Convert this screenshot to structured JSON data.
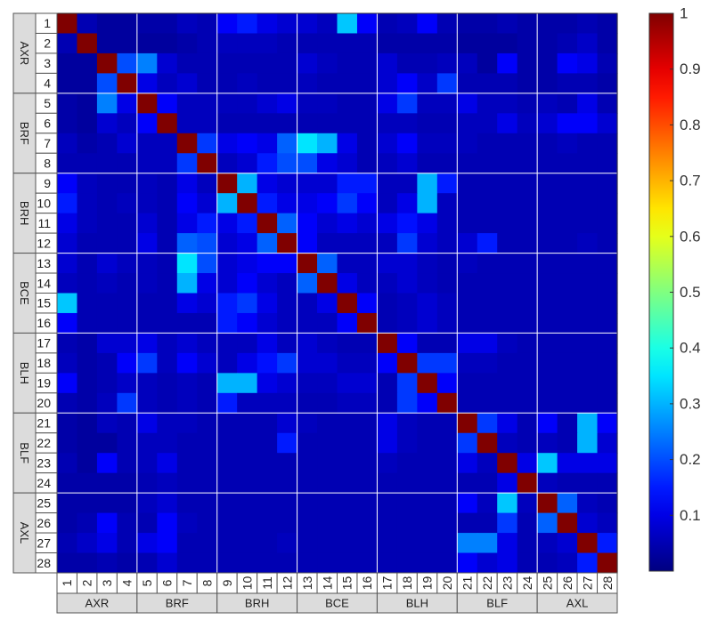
{
  "chart_data": {
    "type": "heatmap",
    "title": "",
    "xlabel": "",
    "ylabel": "",
    "labels": [
      "1",
      "2",
      "3",
      "4",
      "5",
      "6",
      "7",
      "8",
      "9",
      "10",
      "11",
      "12",
      "13",
      "14",
      "15",
      "16",
      "17",
      "18",
      "19",
      "20",
      "21",
      "22",
      "23",
      "24",
      "25",
      "26",
      "27",
      "28"
    ],
    "groups": [
      {
        "name": "AXR",
        "count": 4
      },
      {
        "name": "BRF",
        "count": 4
      },
      {
        "name": "BRH",
        "count": 4
      },
      {
        "name": "BCE",
        "count": 4
      },
      {
        "name": "BLH",
        "count": 4
      },
      {
        "name": "BLF",
        "count": 4
      },
      {
        "name": "AXL",
        "count": 4
      }
    ],
    "colormap": "jet",
    "clim": [
      0,
      1
    ],
    "colorbar_ticks": [
      {
        "value": 1.0,
        "label": "1"
      },
      {
        "value": 0.9,
        "label": "0.9"
      },
      {
        "value": 0.8,
        "label": "0.8"
      },
      {
        "value": 0.7,
        "label": "0.7"
      },
      {
        "value": 0.6,
        "label": "0.6"
      },
      {
        "value": 0.5,
        "label": "0.5"
      },
      {
        "value": 0.4,
        "label": "0.4"
      },
      {
        "value": 0.3,
        "label": "0.3"
      },
      {
        "value": 0.2,
        "label": "0.2"
      },
      {
        "value": 0.1,
        "label": "0.1"
      }
    ],
    "grid_line_color": "#ffffff",
    "values": [
      [
        1.0,
        0.05,
        0.03,
        0.03,
        0.04,
        0.04,
        0.06,
        0.05,
        0.12,
        0.15,
        0.1,
        0.08,
        0.08,
        0.06,
        0.32,
        0.12,
        0.05,
        0.06,
        0.12,
        0.05,
        0.04,
        0.04,
        0.05,
        0.04,
        0.04,
        0.04,
        0.05,
        0.04
      ],
      [
        0.05,
        1.0,
        0.03,
        0.03,
        0.03,
        0.03,
        0.04,
        0.05,
        0.06,
        0.06,
        0.06,
        0.05,
        0.05,
        0.05,
        0.05,
        0.05,
        0.04,
        0.04,
        0.04,
        0.04,
        0.03,
        0.03,
        0.03,
        0.04,
        0.04,
        0.05,
        0.07,
        0.04
      ],
      [
        0.03,
        0.03,
        1.0,
        0.2,
        0.25,
        0.08,
        0.05,
        0.05,
        0.05,
        0.05,
        0.05,
        0.05,
        0.08,
        0.06,
        0.05,
        0.05,
        0.08,
        0.05,
        0.05,
        0.06,
        0.06,
        0.03,
        0.12,
        0.04,
        0.04,
        0.12,
        0.1,
        0.05
      ],
      [
        0.03,
        0.03,
        0.2,
        1.0,
        0.1,
        0.06,
        0.08,
        0.05,
        0.05,
        0.06,
        0.05,
        0.05,
        0.06,
        0.05,
        0.05,
        0.05,
        0.08,
        0.12,
        0.07,
        0.18,
        0.05,
        0.05,
        0.05,
        0.04,
        0.04,
        0.05,
        0.05,
        0.04
      ],
      [
        0.04,
        0.03,
        0.25,
        0.1,
        1.0,
        0.12,
        0.06,
        0.06,
        0.06,
        0.06,
        0.08,
        0.1,
        0.06,
        0.06,
        0.05,
        0.05,
        0.1,
        0.18,
        0.06,
        0.06,
        0.1,
        0.06,
        0.06,
        0.05,
        0.06,
        0.05,
        0.1,
        0.05
      ],
      [
        0.04,
        0.03,
        0.08,
        0.06,
        0.12,
        1.0,
        0.06,
        0.06,
        0.05,
        0.05,
        0.05,
        0.05,
        0.05,
        0.05,
        0.05,
        0.05,
        0.06,
        0.06,
        0.05,
        0.05,
        0.06,
        0.06,
        0.1,
        0.06,
        0.08,
        0.12,
        0.12,
        0.08
      ],
      [
        0.06,
        0.04,
        0.05,
        0.08,
        0.06,
        0.06,
        1.0,
        0.18,
        0.1,
        0.12,
        0.1,
        0.22,
        0.35,
        0.3,
        0.1,
        0.05,
        0.08,
        0.12,
        0.06,
        0.06,
        0.06,
        0.05,
        0.05,
        0.05,
        0.05,
        0.06,
        0.05,
        0.05
      ],
      [
        0.05,
        0.05,
        0.05,
        0.05,
        0.06,
        0.06,
        0.18,
        1.0,
        0.06,
        0.08,
        0.15,
        0.2,
        0.2,
        0.1,
        0.08,
        0.05,
        0.06,
        0.08,
        0.05,
        0.05,
        0.05,
        0.05,
        0.05,
        0.05,
        0.05,
        0.05,
        0.05,
        0.05
      ],
      [
        0.12,
        0.06,
        0.05,
        0.05,
        0.06,
        0.05,
        0.1,
        0.06,
        1.0,
        0.3,
        0.1,
        0.08,
        0.08,
        0.08,
        0.15,
        0.15,
        0.06,
        0.06,
        0.3,
        0.15,
        0.05,
        0.05,
        0.05,
        0.05,
        0.05,
        0.05,
        0.05,
        0.05
      ],
      [
        0.15,
        0.06,
        0.05,
        0.06,
        0.06,
        0.05,
        0.12,
        0.08,
        0.3,
        1.0,
        0.15,
        0.1,
        0.1,
        0.12,
        0.18,
        0.12,
        0.06,
        0.1,
        0.3,
        0.06,
        0.05,
        0.05,
        0.05,
        0.05,
        0.05,
        0.05,
        0.05,
        0.05
      ],
      [
        0.1,
        0.06,
        0.05,
        0.05,
        0.08,
        0.05,
        0.1,
        0.15,
        0.1,
        0.15,
        1.0,
        0.22,
        0.12,
        0.08,
        0.1,
        0.08,
        0.1,
        0.14,
        0.1,
        0.06,
        0.05,
        0.05,
        0.05,
        0.05,
        0.05,
        0.05,
        0.05,
        0.05
      ],
      [
        0.08,
        0.05,
        0.05,
        0.05,
        0.1,
        0.05,
        0.22,
        0.2,
        0.08,
        0.1,
        0.22,
        1.0,
        0.12,
        0.06,
        0.06,
        0.06,
        0.06,
        0.18,
        0.08,
        0.06,
        0.08,
        0.15,
        0.05,
        0.05,
        0.05,
        0.05,
        0.06,
        0.05
      ],
      [
        0.08,
        0.05,
        0.08,
        0.06,
        0.06,
        0.05,
        0.35,
        0.2,
        0.08,
        0.1,
        0.12,
        0.12,
        1.0,
        0.22,
        0.06,
        0.06,
        0.08,
        0.08,
        0.06,
        0.05,
        0.06,
        0.05,
        0.05,
        0.05,
        0.05,
        0.05,
        0.05,
        0.05
      ],
      [
        0.06,
        0.05,
        0.06,
        0.05,
        0.06,
        0.05,
        0.3,
        0.1,
        0.08,
        0.12,
        0.08,
        0.06,
        0.22,
        1.0,
        0.1,
        0.06,
        0.06,
        0.08,
        0.06,
        0.05,
        0.05,
        0.05,
        0.05,
        0.05,
        0.05,
        0.05,
        0.05,
        0.05
      ],
      [
        0.32,
        0.05,
        0.05,
        0.05,
        0.05,
        0.05,
        0.1,
        0.08,
        0.15,
        0.18,
        0.1,
        0.06,
        0.06,
        0.1,
        1.0,
        0.12,
        0.05,
        0.06,
        0.08,
        0.06,
        0.05,
        0.05,
        0.05,
        0.05,
        0.05,
        0.05,
        0.05,
        0.05
      ],
      [
        0.12,
        0.05,
        0.05,
        0.05,
        0.05,
        0.05,
        0.05,
        0.05,
        0.15,
        0.12,
        0.08,
        0.06,
        0.06,
        0.06,
        0.12,
        1.0,
        0.05,
        0.06,
        0.08,
        0.06,
        0.05,
        0.05,
        0.05,
        0.05,
        0.05,
        0.05,
        0.05,
        0.05
      ],
      [
        0.05,
        0.04,
        0.08,
        0.08,
        0.1,
        0.06,
        0.08,
        0.06,
        0.06,
        0.06,
        0.1,
        0.06,
        0.08,
        0.06,
        0.05,
        0.05,
        1.0,
        0.12,
        0.05,
        0.05,
        0.1,
        0.1,
        0.06,
        0.05,
        0.05,
        0.05,
        0.05,
        0.05
      ],
      [
        0.06,
        0.04,
        0.05,
        0.12,
        0.18,
        0.06,
        0.12,
        0.08,
        0.06,
        0.1,
        0.14,
        0.18,
        0.08,
        0.08,
        0.06,
        0.06,
        0.12,
        1.0,
        0.18,
        0.18,
        0.06,
        0.06,
        0.05,
        0.05,
        0.05,
        0.05,
        0.05,
        0.05
      ],
      [
        0.12,
        0.04,
        0.05,
        0.07,
        0.06,
        0.05,
        0.06,
        0.05,
        0.3,
        0.3,
        0.1,
        0.08,
        0.06,
        0.06,
        0.08,
        0.08,
        0.05,
        0.18,
        1.0,
        0.12,
        0.05,
        0.05,
        0.05,
        0.05,
        0.05,
        0.05,
        0.05,
        0.05
      ],
      [
        0.05,
        0.04,
        0.06,
        0.18,
        0.06,
        0.05,
        0.06,
        0.05,
        0.15,
        0.06,
        0.06,
        0.06,
        0.05,
        0.05,
        0.06,
        0.06,
        0.05,
        0.18,
        0.12,
        1.0,
        0.05,
        0.05,
        0.05,
        0.05,
        0.05,
        0.05,
        0.05,
        0.05
      ],
      [
        0.04,
        0.03,
        0.06,
        0.05,
        0.1,
        0.06,
        0.06,
        0.05,
        0.05,
        0.05,
        0.05,
        0.08,
        0.06,
        0.05,
        0.05,
        0.05,
        0.1,
        0.06,
        0.05,
        0.05,
        1.0,
        0.18,
        0.1,
        0.05,
        0.12,
        0.05,
        0.3,
        0.12
      ],
      [
        0.04,
        0.03,
        0.03,
        0.05,
        0.06,
        0.06,
        0.05,
        0.05,
        0.05,
        0.05,
        0.05,
        0.15,
        0.05,
        0.05,
        0.05,
        0.05,
        0.1,
        0.06,
        0.05,
        0.05,
        0.18,
        1.0,
        0.06,
        0.05,
        0.06,
        0.05,
        0.3,
        0.08
      ],
      [
        0.05,
        0.03,
        0.12,
        0.05,
        0.06,
        0.1,
        0.05,
        0.05,
        0.05,
        0.05,
        0.05,
        0.05,
        0.05,
        0.05,
        0.05,
        0.05,
        0.06,
        0.05,
        0.05,
        0.05,
        0.1,
        0.06,
        1.0,
        0.1,
        0.32,
        0.1,
        0.1,
        0.1
      ],
      [
        0.04,
        0.04,
        0.04,
        0.04,
        0.05,
        0.06,
        0.05,
        0.05,
        0.05,
        0.05,
        0.05,
        0.05,
        0.05,
        0.05,
        0.05,
        0.05,
        0.05,
        0.05,
        0.05,
        0.05,
        0.05,
        0.05,
        0.1,
        1.0,
        0.06,
        0.05,
        0.05,
        0.05
      ],
      [
        0.04,
        0.04,
        0.04,
        0.04,
        0.06,
        0.08,
        0.05,
        0.05,
        0.05,
        0.05,
        0.05,
        0.05,
        0.05,
        0.05,
        0.05,
        0.05,
        0.05,
        0.05,
        0.05,
        0.05,
        0.12,
        0.06,
        0.32,
        0.06,
        1.0,
        0.22,
        0.06,
        0.05
      ],
      [
        0.04,
        0.05,
        0.12,
        0.05,
        0.05,
        0.12,
        0.06,
        0.05,
        0.05,
        0.05,
        0.05,
        0.05,
        0.05,
        0.05,
        0.05,
        0.05,
        0.05,
        0.05,
        0.05,
        0.05,
        0.05,
        0.05,
        0.18,
        0.05,
        0.22,
        1.0,
        0.08,
        0.06
      ],
      [
        0.05,
        0.07,
        0.1,
        0.05,
        0.1,
        0.12,
        0.05,
        0.05,
        0.05,
        0.05,
        0.05,
        0.06,
        0.05,
        0.05,
        0.05,
        0.05,
        0.05,
        0.05,
        0.05,
        0.05,
        0.25,
        0.25,
        0.1,
        0.05,
        0.06,
        0.08,
        1.0,
        0.15
      ],
      [
        0.04,
        0.04,
        0.05,
        0.04,
        0.05,
        0.08,
        0.05,
        0.05,
        0.05,
        0.05,
        0.05,
        0.05,
        0.05,
        0.05,
        0.05,
        0.05,
        0.05,
        0.05,
        0.05,
        0.05,
        0.12,
        0.08,
        0.1,
        0.05,
        0.05,
        0.06,
        0.15,
        1.0
      ]
    ]
  }
}
